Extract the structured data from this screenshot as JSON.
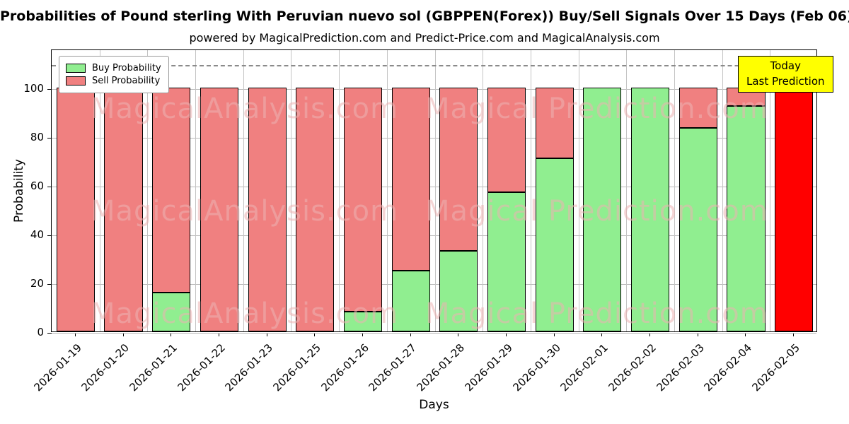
{
  "title": "Probabilities of Pound sterling With Peruvian nuevo sol (GBPPEN(Forex)) Buy/Sell Signals Over 15 Days (Feb 06)",
  "subtitle": "powered by MagicalPrediction.com and Predict-Price.com and MagicalAnalysis.com",
  "axes": {
    "xlabel": "Days",
    "ylabel": "Probability",
    "yticks": [
      0,
      20,
      40,
      60,
      80,
      100
    ],
    "ylim": [
      0,
      116
    ],
    "dashed_line_y": 110,
    "grid": true
  },
  "legend": {
    "position": "upper-left",
    "buy_label": "Buy Probability",
    "sell_label": "Sell Probability"
  },
  "annotation": {
    "line1": "Today",
    "line2": "Last Prediction",
    "bg_color": "#FFFF00"
  },
  "watermarks": {
    "left": "MagicalAnalysis.com",
    "right": "Magical Prediction.com"
  },
  "colors": {
    "buy": "#90EE90",
    "sell": "#F08080",
    "today": "#FF0000",
    "grid": "#b9b9b9"
  },
  "chart_data": {
    "type": "bar",
    "stacked": true,
    "categories": [
      "2026-01-19",
      "2026-01-20",
      "2026-01-21",
      "2026-01-22",
      "2026-01-23",
      "2026-01-25",
      "2026-01-26",
      "2026-01-27",
      "2026-01-28",
      "2026-01-29",
      "2026-01-30",
      "2026-02-01",
      "2026-02-02",
      "2026-02-03",
      "2026-02-04",
      "2026-02-05"
    ],
    "series": [
      {
        "name": "Buy Probability",
        "color": "#90EE90",
        "values": [
          0,
          0,
          16,
          0,
          0,
          0,
          8,
          25,
          33,
          57,
          71,
          100,
          100,
          83.5,
          92.5,
          0
        ]
      },
      {
        "name": "Sell Probability",
        "color": "#F08080",
        "values": [
          100,
          100,
          84,
          100,
          100,
          100,
          92,
          75,
          67,
          43,
          29,
          0,
          0,
          16.5,
          7.5,
          0
        ]
      },
      {
        "name": "Today Last Prediction",
        "color": "#FF0000",
        "values": [
          0,
          0,
          0,
          0,
          0,
          0,
          0,
          0,
          0,
          0,
          0,
          0,
          0,
          0,
          0,
          100
        ]
      }
    ]
  }
}
